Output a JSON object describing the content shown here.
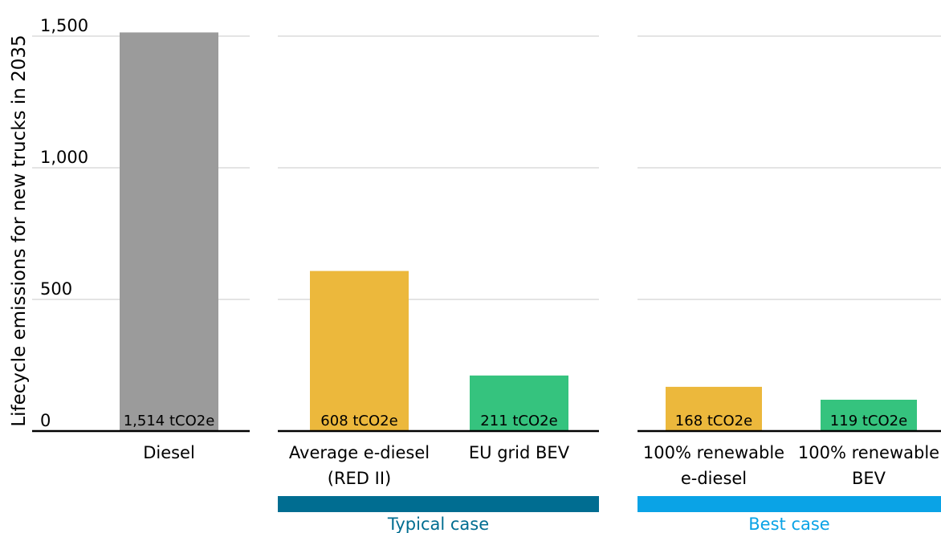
{
  "chart_data": {
    "type": "bar",
    "ylabel": "Lifecycle emissions for new trucks in 2035",
    "ylim": [
      0,
      1500
    ],
    "yticks": [
      0,
      500,
      1000,
      1500
    ],
    "ytick_labels": [
      "0",
      "500",
      "1,000",
      "1,500"
    ],
    "grid": true,
    "panels": [
      {
        "group_label": "",
        "group_color": "",
        "bars": [
          {
            "category": [
              "Diesel"
            ],
            "value": 1514,
            "label": "1,514 tCO2e",
            "color": "#9b9b9b"
          }
        ]
      },
      {
        "group_label": "Typical case",
        "group_color": "#006d91",
        "bars": [
          {
            "category": [
              "Average e-diesel",
              "(RED II)"
            ],
            "value": 608,
            "label": "608 tCO2e",
            "color": "#ecb83c"
          },
          {
            "category": [
              "EU grid BEV"
            ],
            "value": 211,
            "label": "211 tCO2e",
            "color": "#35c37e"
          }
        ]
      },
      {
        "group_label": "Best case",
        "group_color": "#0aa3e6",
        "bars": [
          {
            "category": [
              "100% renewable",
              "e-diesel"
            ],
            "value": 168,
            "label": "168 tCO2e",
            "color": "#ecb83c"
          },
          {
            "category": [
              "100% renewable",
              "BEV"
            ],
            "value": 119,
            "label": "119 tCO2e",
            "color": "#35c37e"
          }
        ]
      }
    ]
  }
}
